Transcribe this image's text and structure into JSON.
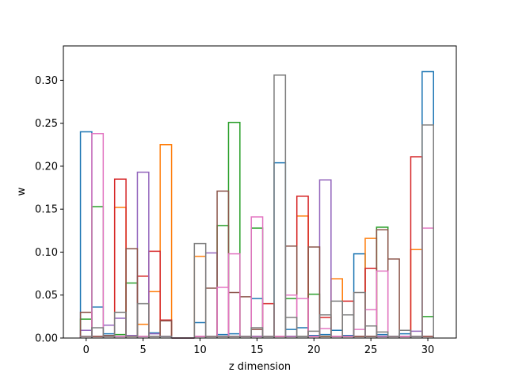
{
  "chart_data": {
    "type": "bar",
    "style": "step-histogram",
    "xlabel": "z dimension",
    "ylabel": "w",
    "xlim": [
      -2,
      32.5
    ],
    "ylim": [
      0,
      0.34
    ],
    "xticks": [
      0,
      5,
      10,
      15,
      20,
      25,
      30
    ],
    "yticks": [
      0.0,
      0.05,
      0.1,
      0.15,
      0.2,
      0.25,
      0.3
    ],
    "ytick_labels": [
      "0.00",
      "0.05",
      "0.10",
      "0.15",
      "0.20",
      "0.25",
      "0.30"
    ],
    "grid": false,
    "legend": "none",
    "categories": [
      0,
      1,
      2,
      3,
      4,
      5,
      6,
      7,
      8,
      9,
      10,
      11,
      12,
      13,
      14,
      15,
      16,
      17,
      18,
      19,
      20,
      21,
      22,
      23,
      24,
      25,
      26,
      27,
      28,
      29,
      30
    ],
    "series": [
      {
        "color": "#1f77b4",
        "values": [
          0.24,
          0.036,
          0.005,
          0.002,
          0.003,
          0.002,
          0.006,
          0.002,
          0,
          0,
          0.018,
          0.002,
          0.004,
          0.005,
          0.002,
          0.046,
          0.002,
          0.204,
          0.01,
          0.012,
          0.003,
          0.004,
          0.009,
          0.003,
          0.098,
          0.002,
          0.004,
          0.002,
          0.005,
          0.002,
          0.31
        ]
      },
      {
        "color": "#ff7f0e",
        "values": [
          0.002,
          0.002,
          0.002,
          0.152,
          0.002,
          0.016,
          0.054,
          0.225,
          0,
          0,
          0.095,
          0.002,
          0.002,
          0.002,
          0.002,
          0.002,
          0.002,
          0.002,
          0.002,
          0.142,
          0.002,
          0.002,
          0.069,
          0.002,
          0.002,
          0.116,
          0.002,
          0.002,
          0.002,
          0.103,
          0.002
        ]
      },
      {
        "color": "#2ca02c",
        "values": [
          0.022,
          0.153,
          0.002,
          0.004,
          0.064,
          0.002,
          0.002,
          0.002,
          0,
          0,
          0.002,
          0.002,
          0.131,
          0.251,
          0.002,
          0.128,
          0.002,
          0.002,
          0.046,
          0.002,
          0.051,
          0.002,
          0.002,
          0.002,
          0.002,
          0.002,
          0.129,
          0.002,
          0.002,
          0.002,
          0.025
        ]
      },
      {
        "color": "#d62728",
        "values": [
          0.002,
          0.002,
          0.002,
          0.185,
          0.002,
          0.072,
          0.101,
          0.021,
          0,
          0,
          0.002,
          0.002,
          0.002,
          0.002,
          0.002,
          0.002,
          0.04,
          0.002,
          0.002,
          0.165,
          0.002,
          0.024,
          0.002,
          0.043,
          0.002,
          0.081,
          0.002,
          0.002,
          0.002,
          0.211,
          0.002
        ]
      },
      {
        "color": "#9467bd",
        "values": [
          0.009,
          0.002,
          0.015,
          0.023,
          0.003,
          0.193,
          0.005,
          0.002,
          0,
          0,
          0.002,
          0.099,
          0.002,
          0.002,
          0.002,
          0.002,
          0.002,
          0.002,
          0.002,
          0.002,
          0.002,
          0.184,
          0.002,
          0.002,
          0.002,
          0.002,
          0.002,
          0.002,
          0.002,
          0.008,
          0.002
        ]
      },
      {
        "color": "#8c564b",
        "values": [
          0.03,
          0.002,
          0.003,
          0.002,
          0.104,
          0.002,
          0.002,
          0.02,
          0,
          0,
          0.002,
          0.058,
          0.171,
          0.053,
          0.048,
          0.01,
          0.002,
          0.002,
          0.107,
          0.002,
          0.106,
          0.002,
          0.002,
          0.002,
          0.002,
          0.002,
          0.126,
          0.092,
          0.002,
          0.002,
          0.002
        ]
      },
      {
        "color": "#e377c2",
        "values": [
          0.002,
          0.238,
          0.002,
          0.002,
          0.002,
          0.002,
          0.002,
          0.002,
          0,
          0,
          0.002,
          0.002,
          0.059,
          0.098,
          0.002,
          0.141,
          0.002,
          0.002,
          0.05,
          0.046,
          0.002,
          0.011,
          0.002,
          0.002,
          0.01,
          0.033,
          0.078,
          0.002,
          0.002,
          0.002,
          0.128
        ]
      },
      {
        "color": "#7f7f7f",
        "values": [
          0.002,
          0.012,
          0.002,
          0.03,
          0.002,
          0.04,
          0.002,
          0.002,
          0,
          0,
          0.11,
          0.002,
          0.002,
          0.002,
          0.002,
          0.012,
          0.002,
          0.306,
          0.024,
          0.002,
          0.008,
          0.027,
          0.043,
          0.027,
          0.053,
          0.014,
          0.007,
          0.002,
          0.009,
          0.002,
          0.248
        ]
      }
    ]
  }
}
